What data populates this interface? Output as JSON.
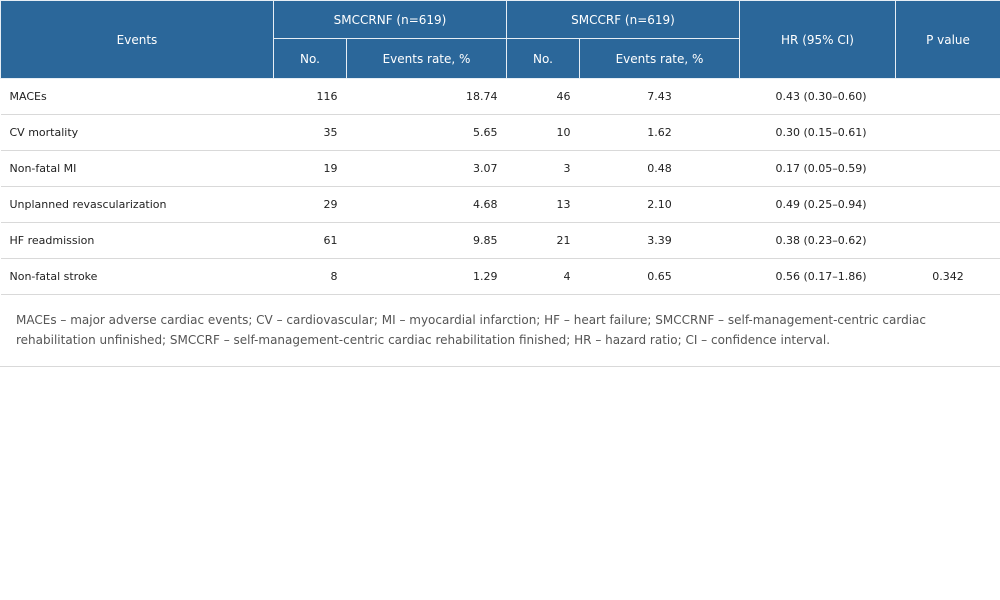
{
  "table": {
    "headers": {
      "events": "Events",
      "group1": "SMCCRNF (n=619)",
      "group2": "SMCCRF (n=619)",
      "hr": "HR (95% CI)",
      "p": "P value",
      "no": "No.",
      "rate": "Events rate, %"
    },
    "rows": [
      {
        "event": "MACEs",
        "no1": "116",
        "rate1": "18.74",
        "no2": "46",
        "rate2": "7.43",
        "hr": "0.43 (0.30–0.60)",
        "p": ""
      },
      {
        "event": "CV mortality",
        "no1": "35",
        "rate1": "5.65",
        "no2": "10",
        "rate2": "1.62",
        "hr": "0.30 (0.15–0.61)",
        "p": ""
      },
      {
        "event": "Non-fatal MI",
        "no1": "19",
        "rate1": "3.07",
        "no2": "3",
        "rate2": "0.48",
        "hr": "0.17 (0.05–0.59)",
        "p": ""
      },
      {
        "event": "Unplanned revascularization",
        "no1": "29",
        "rate1": "4.68",
        "no2": "13",
        "rate2": "2.10",
        "hr": "0.49 (0.25–0.94)",
        "p": ""
      },
      {
        "event": "HF readmission",
        "no1": "61",
        "rate1": "9.85",
        "no2": "21",
        "rate2": "3.39",
        "hr": "0.38 (0.23–0.62)",
        "p": ""
      },
      {
        "event": "Non-fatal stroke",
        "no1": "8",
        "rate1": "1.29",
        "no2": "4",
        "rate2": "0.65",
        "hr": "0.56 (0.17–1.86)",
        "p": "0.342"
      }
    ],
    "footnote": "MACEs – major adverse cardiac events; CV – cardiovascular; MI – myocardial infarction; HF – heart failure; SMCCRNF – self-management-centric cardiac rehabilitation unfinished; SMCCRF – self-management-centric cardiac rehabilitation finished; HR – hazard ratio; CI – confidence interval."
  },
  "colors": {
    "header_bg": "#2b679a",
    "header_text": "#ffffff",
    "row_border": "#d9d9d9"
  }
}
